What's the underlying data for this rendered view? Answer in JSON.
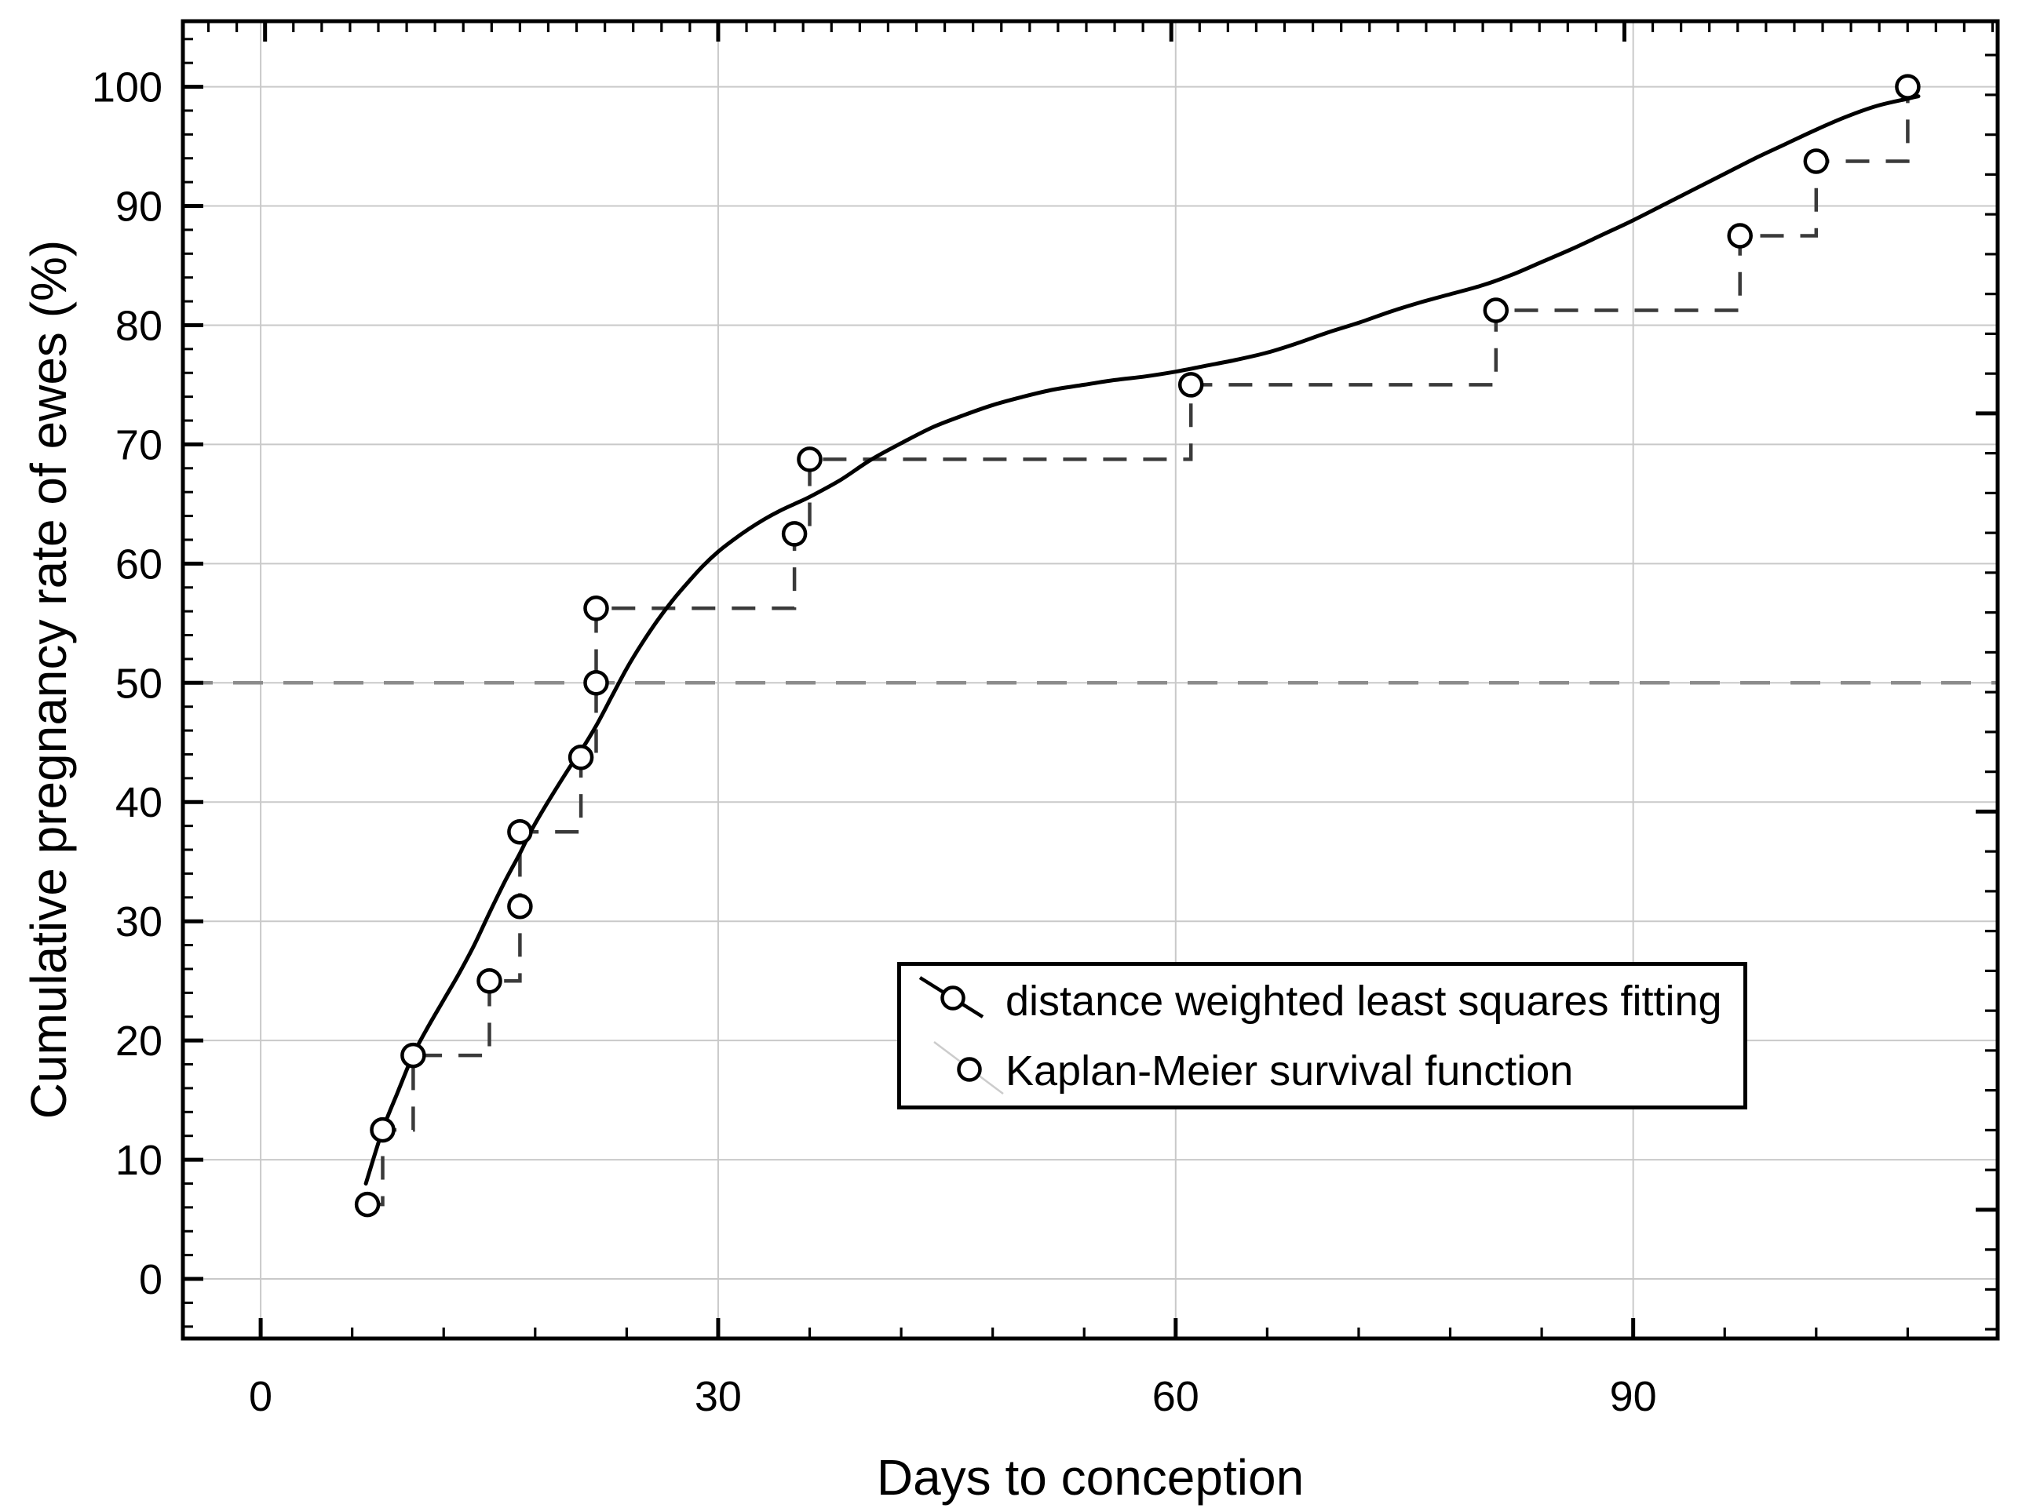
{
  "page": {
    "background": "#ffffff"
  },
  "chart_data": {
    "type": "line",
    "title": "",
    "xlabel": "Days to conception",
    "ylabel": "Cumulative pregnancy rate of ewes (%)",
    "xlim": [
      -5.1,
      113.9
    ],
    "ylim": [
      -5,
      105.5
    ],
    "x_ticks": [
      0,
      30,
      60,
      90
    ],
    "x_tick_labels": [
      "0",
      "30",
      "60",
      "90"
    ],
    "x_minor_step": 6,
    "y_ticks": [
      0,
      10,
      20,
      30,
      40,
      50,
      60,
      70,
      80,
      90,
      100
    ],
    "y_tick_labels": [
      "0",
      "10",
      "20",
      "30",
      "40",
      "50",
      "60",
      "70",
      "80",
      "90",
      "100"
    ],
    "y_minor_step": 2,
    "grid": "major-gridlines-on",
    "median_reference_pct": 50,
    "legend_position": "inside-lower-right",
    "series": [
      {
        "name": "Kaplan-Meier survival function",
        "type": "step",
        "line_style": "dashed",
        "marker": "open-circle",
        "points_day_pct": [
          [
            7,
            6.25
          ],
          [
            8,
            12.5
          ],
          [
            10,
            18.75
          ],
          [
            15,
            25
          ],
          [
            17,
            31.25
          ],
          [
            17,
            37.5
          ],
          [
            21,
            43.75
          ],
          [
            22,
            50
          ],
          [
            22,
            56.25
          ],
          [
            35,
            62.5
          ],
          [
            36,
            68.75
          ],
          [
            61,
            75
          ],
          [
            81,
            81.25
          ],
          [
            97,
            87.5
          ],
          [
            102,
            93.75
          ],
          [
            108,
            100
          ]
        ]
      },
      {
        "name": "distance weighted least squares fitting",
        "type": "smooth-line",
        "line_style": "solid",
        "points_day_pct": [
          [
            6.9,
            8
          ],
          [
            8,
            12.5
          ],
          [
            9,
            15.7
          ],
          [
            10,
            18.8
          ],
          [
            11,
            21.2
          ],
          [
            12,
            23.4
          ],
          [
            13,
            25.6
          ],
          [
            14,
            28
          ],
          [
            15,
            30.7
          ],
          [
            16,
            33.3
          ],
          [
            17,
            35.7
          ],
          [
            18,
            38.2
          ],
          [
            20,
            42.4
          ],
          [
            21,
            44.3
          ],
          [
            22,
            46.4
          ],
          [
            23,
            48.8
          ],
          [
            24,
            51.2
          ],
          [
            25,
            53.3
          ],
          [
            26,
            55.2
          ],
          [
            27,
            56.9
          ],
          [
            28,
            58.4
          ],
          [
            29,
            59.8
          ],
          [
            30,
            61
          ],
          [
            31,
            62
          ],
          [
            32,
            62.9
          ],
          [
            33,
            63.7
          ],
          [
            34,
            64.4
          ],
          [
            35,
            65
          ],
          [
            36,
            65.6
          ],
          [
            38,
            67
          ],
          [
            40,
            68.7
          ],
          [
            42,
            70.1
          ],
          [
            44,
            71.4
          ],
          [
            46,
            72.4
          ],
          [
            48,
            73.3
          ],
          [
            50,
            74
          ],
          [
            52,
            74.6
          ],
          [
            54,
            75
          ],
          [
            56,
            75.4
          ],
          [
            58,
            75.7
          ],
          [
            60,
            76.1
          ],
          [
            62,
            76.6
          ],
          [
            64,
            77.1
          ],
          [
            66,
            77.7
          ],
          [
            68,
            78.5
          ],
          [
            70,
            79.4
          ],
          [
            72,
            80.2
          ],
          [
            74,
            81.1
          ],
          [
            76,
            81.9
          ],
          [
            78,
            82.6
          ],
          [
            80,
            83.3
          ],
          [
            82,
            84.2
          ],
          [
            84,
            85.3
          ],
          [
            86,
            86.4
          ],
          [
            88,
            87.6
          ],
          [
            90,
            88.8
          ],
          [
            92,
            90.1
          ],
          [
            94,
            91.4
          ],
          [
            96,
            92.7
          ],
          [
            98,
            94
          ],
          [
            100,
            95.2
          ],
          [
            102,
            96.4
          ],
          [
            104,
            97.5
          ],
          [
            106,
            98.4
          ],
          [
            108,
            99
          ],
          [
            108.7,
            99.2
          ]
        ]
      }
    ],
    "legend": {
      "items": [
        {
          "label": "distance weighted least squares fitting",
          "symbol": "line-with-open-circle"
        },
        {
          "label": "Kaplan-Meier survival function",
          "symbol": "open-circle"
        }
      ]
    }
  },
  "style": {
    "frame_color": "#000000",
    "grid_color": "#c9c9c9",
    "reference_color": "#8c8c8c",
    "km_color": "#3a3a3a",
    "curve_color": "#000000",
    "marker_fill": "#ffffff",
    "text_color": "#000000"
  }
}
